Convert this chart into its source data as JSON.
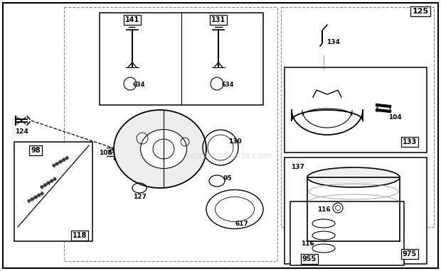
{
  "bg_color": "#ffffff",
  "watermark": "ReplacementParts.com",
  "fig_w": 6.2,
  "fig_h": 3.82
}
